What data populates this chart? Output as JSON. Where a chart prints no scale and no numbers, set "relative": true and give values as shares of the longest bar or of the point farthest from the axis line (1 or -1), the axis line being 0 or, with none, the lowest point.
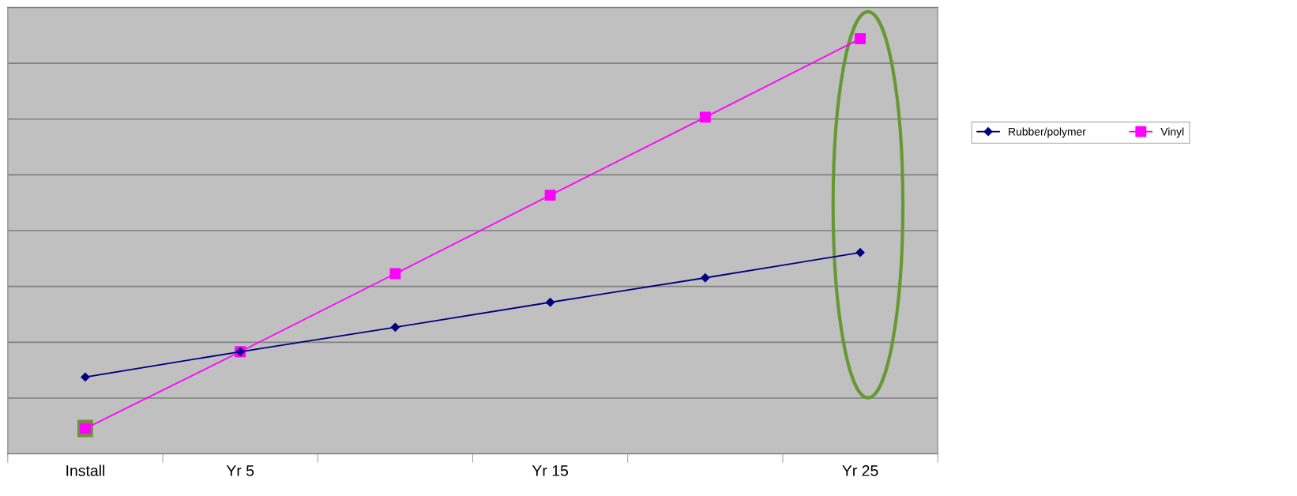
{
  "chart_data": {
    "type": "line",
    "relative": true,
    "categories": [
      "Install",
      "Yr 5",
      null,
      "Yr 15",
      null,
      "Yr 25"
    ],
    "series": [
      {
        "name": "Rubber/polymer",
        "color": "#000080",
        "marker": "diamond",
        "values": [
          0.185,
          0.246,
          0.305,
          0.365,
          0.424,
          0.485
        ]
      },
      {
        "name": "Vinyl",
        "color": "#ff00ff",
        "marker": "square",
        "values": [
          0.061,
          0.246,
          0.434,
          0.623,
          0.811,
          1
        ]
      }
    ],
    "grid": "y",
    "legend": "right"
  }
}
